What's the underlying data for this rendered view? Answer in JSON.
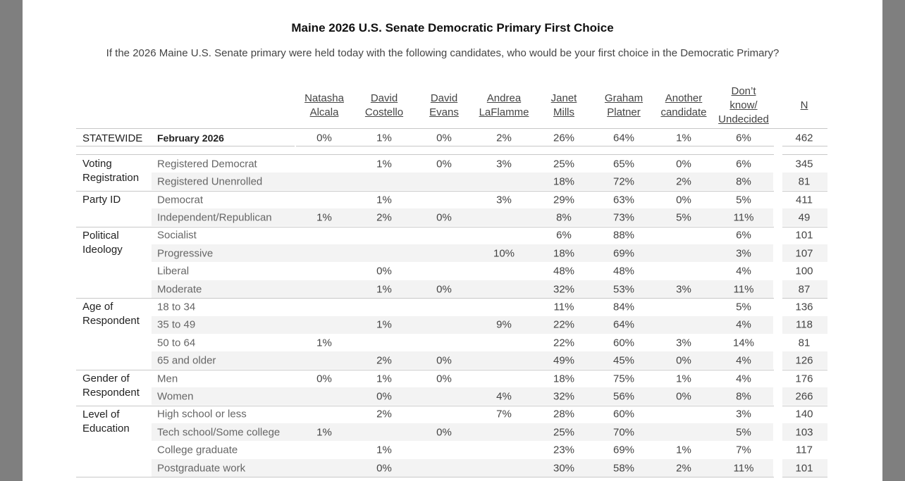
{
  "header": {
    "title": "Maine 2026 U.S. Senate Democratic Primary First Choice",
    "subtitle": "If the 2026 Maine U.S. Senate primary were held today with the following candidates, who would be your first choice in the Democratic Primary?"
  },
  "table": {
    "columns": [
      [
        "Natasha",
        "Alcala"
      ],
      [
        "David",
        "Costello"
      ],
      [
        "David",
        "Evans"
      ],
      [
        "Andrea",
        "LaFlamme"
      ],
      [
        "Janet",
        "Mills"
      ],
      [
        "Graham",
        "Platner"
      ],
      [
        "Another",
        "candidate"
      ],
      [
        "Don’t",
        "know/",
        "Undecided"
      ],
      [
        "N"
      ]
    ],
    "groups": [
      {
        "label": "STATEWIDE",
        "rows": [
          {
            "label": "February 2026",
            "cells": [
              "0%",
              "1%",
              "0%",
              "2%",
              "26%",
              "64%",
              "1%",
              "6%",
              "462"
            ]
          }
        ]
      },
      {
        "label": "Voting Registration",
        "rows": [
          {
            "label": "Registered Democrat",
            "cells": [
              null,
              "1%",
              "0%",
              "3%",
              "25%",
              "65%",
              "0%",
              "6%",
              "345"
            ]
          },
          {
            "label": "Registered Unenrolled",
            "cells": [
              null,
              null,
              null,
              null,
              "18%",
              "72%",
              "2%",
              "8%",
              "81"
            ]
          }
        ]
      },
      {
        "label": "Party ID",
        "rows": [
          {
            "label": "Democrat",
            "cells": [
              null,
              "1%",
              null,
              "3%",
              "29%",
              "63%",
              "0%",
              "5%",
              "411"
            ]
          },
          {
            "label": "Independent/Republican",
            "cells": [
              "1%",
              "2%",
              "0%",
              null,
              "8%",
              "73%",
              "5%",
              "11%",
              "49"
            ]
          }
        ]
      },
      {
        "label": "Political Ideology",
        "rows": [
          {
            "label": "Socialist",
            "cells": [
              null,
              null,
              null,
              null,
              "6%",
              "88%",
              null,
              "6%",
              "101"
            ]
          },
          {
            "label": "Progressive",
            "cells": [
              null,
              null,
              null,
              "10%",
              "18%",
              "69%",
              null,
              "3%",
              "107"
            ]
          },
          {
            "label": "Liberal",
            "cells": [
              null,
              "0%",
              null,
              null,
              "48%",
              "48%",
              null,
              "4%",
              "100"
            ]
          },
          {
            "label": "Moderate",
            "cells": [
              null,
              "1%",
              "0%",
              null,
              "32%",
              "53%",
              "3%",
              "11%",
              "87"
            ]
          }
        ]
      },
      {
        "label": "Age of Respondent",
        "rows": [
          {
            "label": "18 to 34",
            "cells": [
              null,
              null,
              null,
              null,
              "11%",
              "84%",
              null,
              "5%",
              "136"
            ]
          },
          {
            "label": "35 to 49",
            "cells": [
              null,
              "1%",
              null,
              "9%",
              "22%",
              "64%",
              null,
              "4%",
              "118"
            ]
          },
          {
            "label": "50 to 64",
            "cells": [
              "1%",
              null,
              null,
              null,
              "22%",
              "60%",
              "3%",
              "14%",
              "81"
            ]
          },
          {
            "label": "65 and older",
            "cells": [
              null,
              "2%",
              "0%",
              null,
              "49%",
              "45%",
              "0%",
              "4%",
              "126"
            ]
          }
        ]
      },
      {
        "label": "Gender of Respondent",
        "rows": [
          {
            "label": "Men",
            "cells": [
              "0%",
              "1%",
              "0%",
              null,
              "18%",
              "75%",
              "1%",
              "4%",
              "176"
            ]
          },
          {
            "label": "Women",
            "cells": [
              null,
              "0%",
              null,
              "4%",
              "32%",
              "56%",
              "0%",
              "8%",
              "266"
            ]
          }
        ]
      },
      {
        "label": "Level of Education",
        "rows": [
          {
            "label": "High school or less",
            "cells": [
              null,
              "2%",
              null,
              "7%",
              "28%",
              "60%",
              null,
              "3%",
              "140"
            ]
          },
          {
            "label": "Tech school/Some college",
            "cells": [
              "1%",
              null,
              "0%",
              null,
              "25%",
              "70%",
              null,
              "5%",
              "103"
            ]
          },
          {
            "label": "College graduate",
            "cells": [
              null,
              "1%",
              null,
              null,
              "23%",
              "69%",
              "1%",
              "7%",
              "117"
            ]
          },
          {
            "label": "Postgraduate work",
            "cells": [
              null,
              "0%",
              null,
              null,
              "30%",
              "58%",
              "2%",
              "11%",
              "101"
            ]
          }
        ]
      }
    ]
  }
}
